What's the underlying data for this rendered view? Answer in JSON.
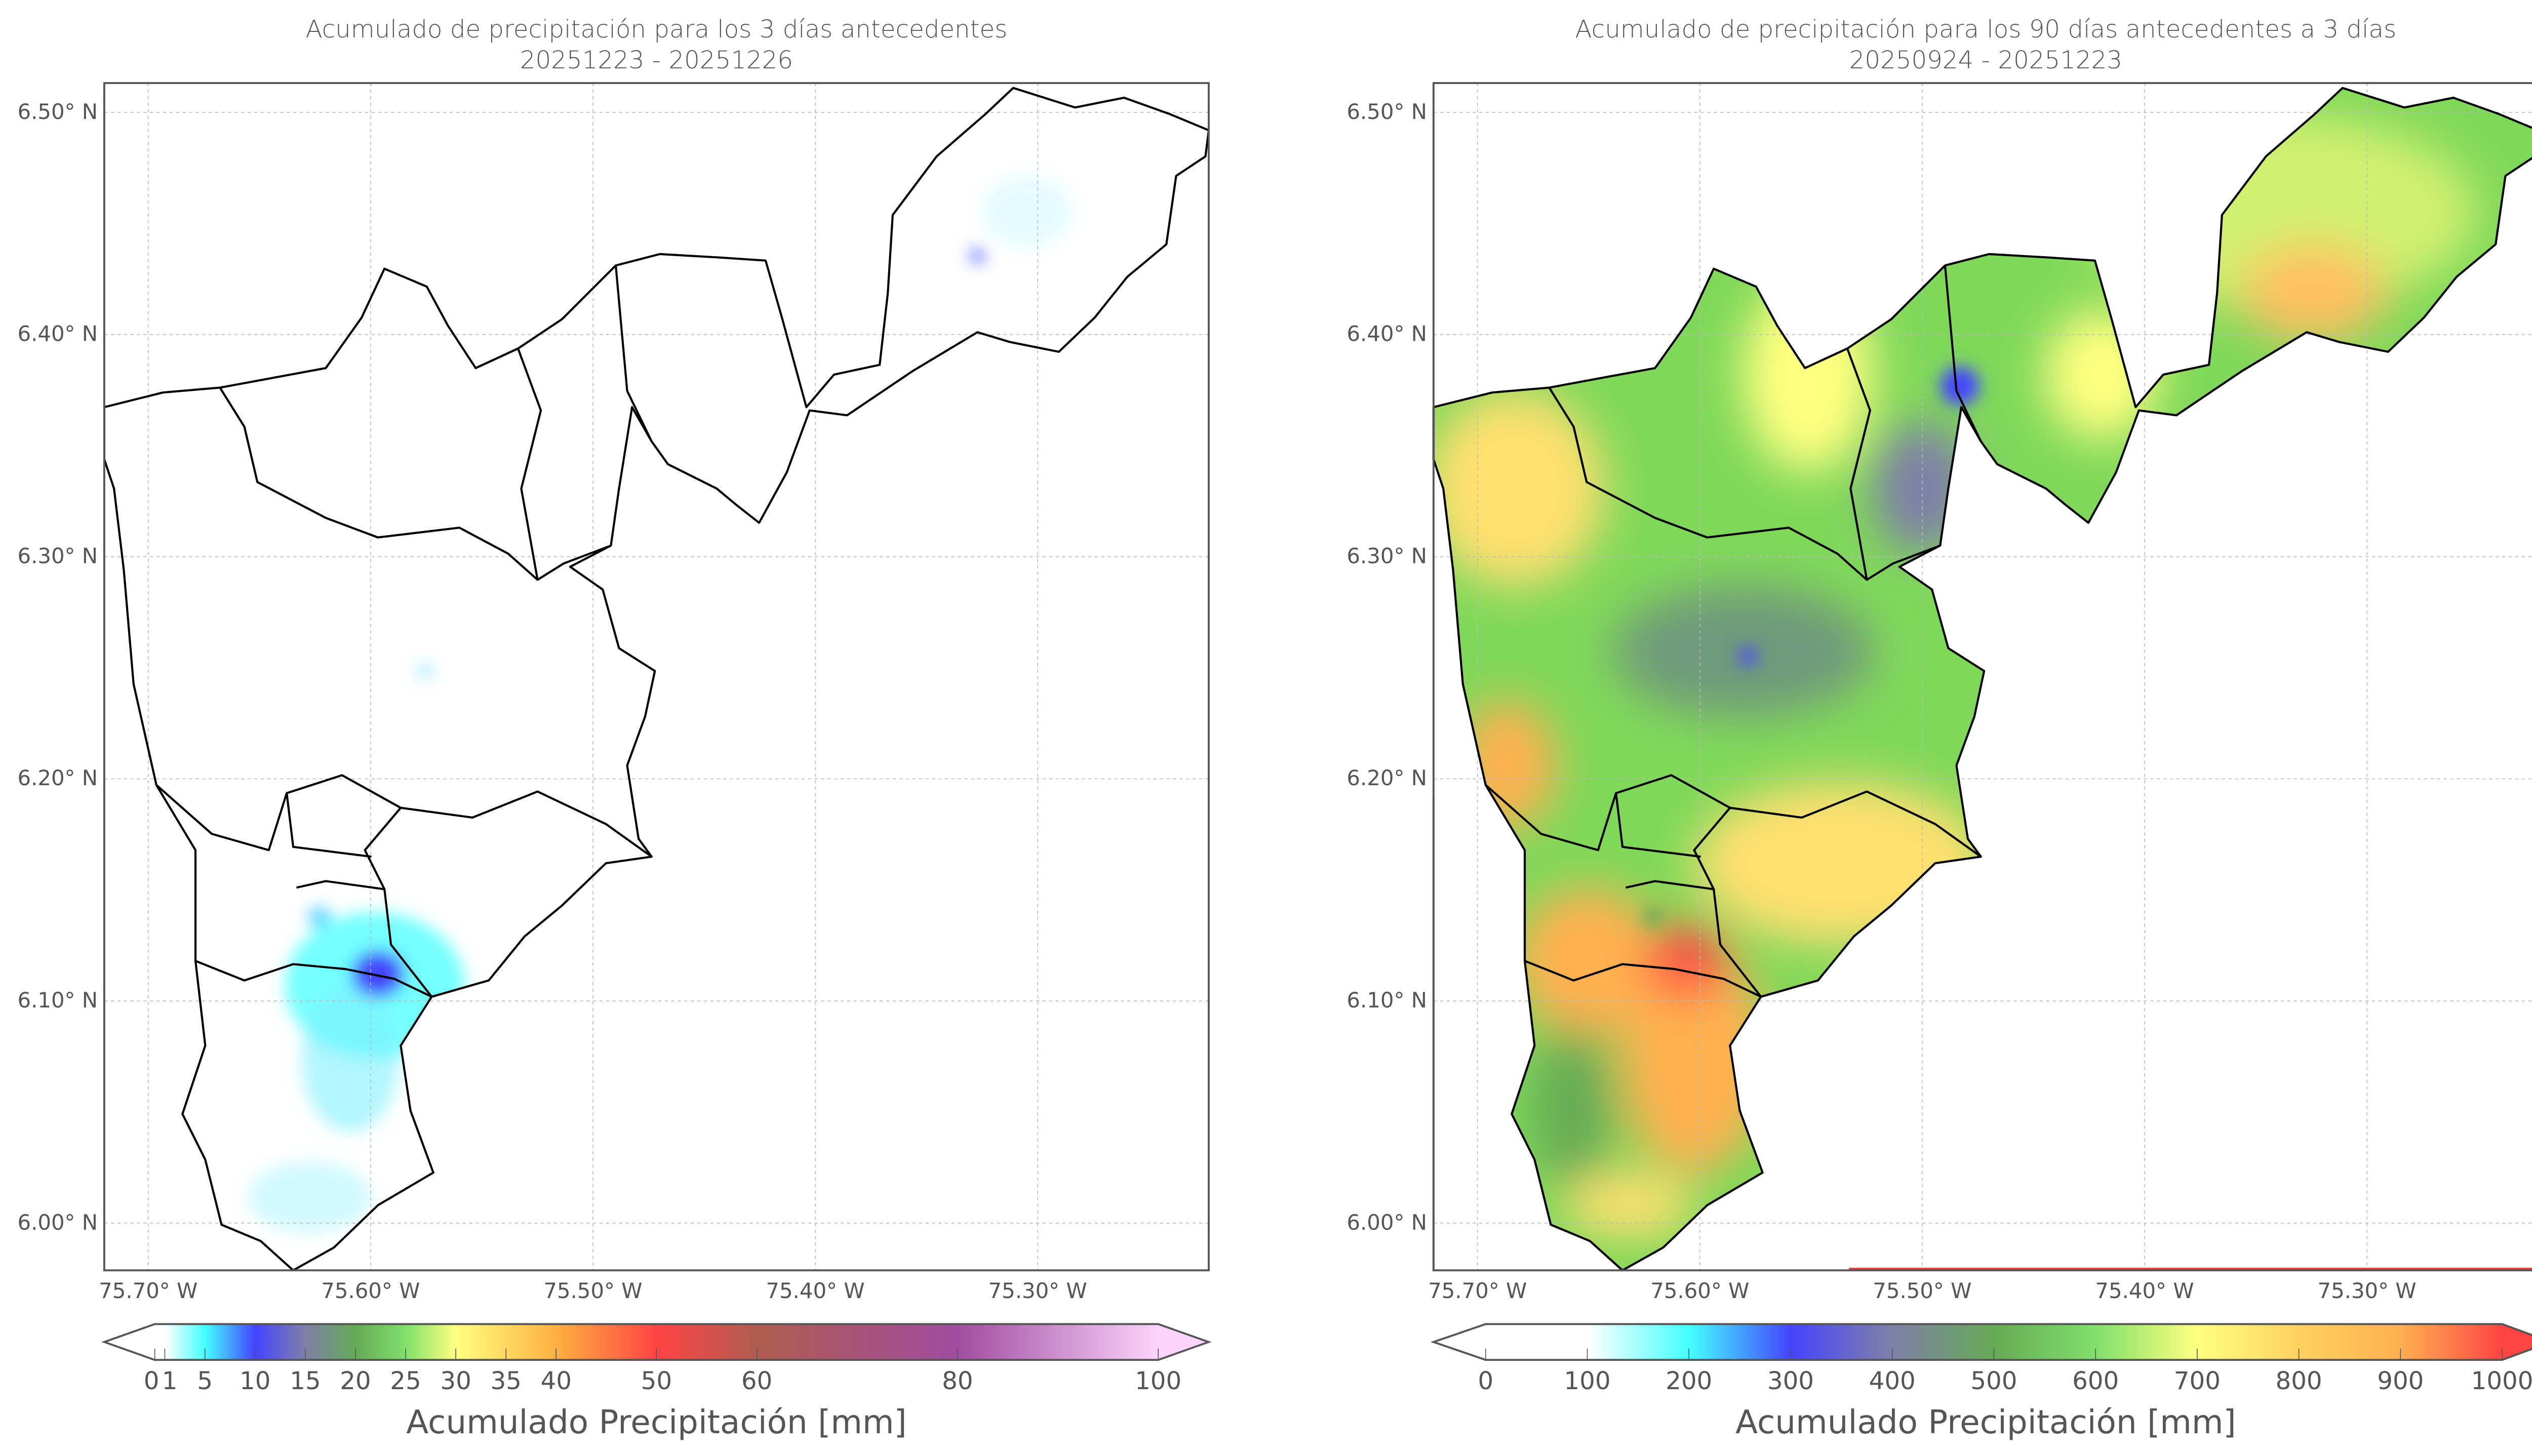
{
  "chart_data": [
    {
      "type": "heatmap",
      "title_line1": "Acumulado de precipitación para los 3 días antecedentes",
      "title_line2": "20251223 - 20251226",
      "xlim": [
        -75.72,
        -75.22
      ],
      "ylim": [
        5.98,
        6.51
      ],
      "grid": true,
      "x_ticks": [
        {
          "value": -75.7,
          "label": "75.70° W"
        },
        {
          "value": -75.6,
          "label": "75.60° W"
        },
        {
          "value": -75.5,
          "label": "75.50° W"
        },
        {
          "value": -75.4,
          "label": "75.40° W"
        },
        {
          "value": -75.3,
          "label": "75.30° W"
        }
      ],
      "y_ticks": [
        {
          "value": 6.5,
          "label": "6.50° N"
        },
        {
          "value": 6.4,
          "label": "6.40° N"
        },
        {
          "value": 6.3,
          "label": "6.30° N"
        },
        {
          "value": 6.2,
          "label": "6.20° N"
        },
        {
          "value": 6.1,
          "label": "6.10° N"
        },
        {
          "value": 6.0,
          "label": "6.00° N"
        }
      ],
      "colorbar": {
        "label": "Acumulado Precipitación [mm]",
        "range": [
          0,
          100
        ],
        "extend": "both",
        "ticks": [
          {
            "value": 0,
            "label": "0"
          },
          {
            "value": 1,
            "label": "1"
          },
          {
            "value": 5,
            "label": "5"
          },
          {
            "value": 10,
            "label": "10"
          },
          {
            "value": 15,
            "label": "15"
          },
          {
            "value": 20,
            "label": "20"
          },
          {
            "value": 25,
            "label": "25"
          },
          {
            "value": 30,
            "label": "30"
          },
          {
            "value": 35,
            "label": "35"
          },
          {
            "value": 40,
            "label": "40"
          },
          {
            "value": 50,
            "label": "50"
          },
          {
            "value": 60,
            "label": "60"
          },
          {
            "value": 80,
            "label": "80"
          },
          {
            "value": 100,
            "label": "100"
          }
        ],
        "colors": [
          [
            0,
            "#ffffff"
          ],
          [
            1,
            "#ffffff"
          ],
          [
            5,
            "#44ffff"
          ],
          [
            10,
            "#4444ff"
          ],
          [
            15,
            "#7f7fa8"
          ],
          [
            20,
            "#66aa55"
          ],
          [
            25,
            "#80e06a"
          ],
          [
            30,
            "#ffff80"
          ],
          [
            40,
            "#ffb040"
          ],
          [
            50,
            "#ff4444"
          ],
          [
            60,
            "#b05c50"
          ],
          [
            80,
            "#a04ca0"
          ],
          [
            100,
            "#fbd4fb"
          ]
        ]
      }
    },
    {
      "type": "heatmap",
      "title_line1": "Acumulado de precipitación para los 90 días antecedentes a 3 días",
      "title_line2": "20250924 - 20251223",
      "xlim": [
        -75.72,
        -75.22
      ],
      "ylim": [
        5.98,
        6.51
      ],
      "grid": true,
      "x_ticks": [
        {
          "value": -75.7,
          "label": "75.70° W"
        },
        {
          "value": -75.6,
          "label": "75.60° W"
        },
        {
          "value": -75.5,
          "label": "75.50° W"
        },
        {
          "value": -75.4,
          "label": "75.40° W"
        },
        {
          "value": -75.3,
          "label": "75.30° W"
        }
      ],
      "y_ticks": [
        {
          "value": 6.5,
          "label": "6.50° N"
        },
        {
          "value": 6.4,
          "label": "6.40° N"
        },
        {
          "value": 6.3,
          "label": "6.30° N"
        },
        {
          "value": 6.2,
          "label": "6.20° N"
        },
        {
          "value": 6.1,
          "label": "6.10° N"
        },
        {
          "value": 6.0,
          "label": "6.00° N"
        }
      ],
      "colorbar": {
        "label": "Acumulado Precipitación [mm]",
        "range": [
          0,
          1000
        ],
        "extend": "both",
        "ticks": [
          {
            "value": 0,
            "label": "0"
          },
          {
            "value": 100,
            "label": "100"
          },
          {
            "value": 200,
            "label": "200"
          },
          {
            "value": 300,
            "label": "300"
          },
          {
            "value": 400,
            "label": "400"
          },
          {
            "value": 500,
            "label": "500"
          },
          {
            "value": 600,
            "label": "600"
          },
          {
            "value": 700,
            "label": "700"
          },
          {
            "value": 800,
            "label": "800"
          },
          {
            "value": 900,
            "label": "900"
          },
          {
            "value": 1000,
            "label": "1000"
          }
        ],
        "colors": [
          [
            0,
            "#ffffff"
          ],
          [
            100,
            "#ffffff"
          ],
          [
            200,
            "#44ffff"
          ],
          [
            300,
            "#4444ff"
          ],
          [
            400,
            "#7f7fa8"
          ],
          [
            500,
            "#66aa55"
          ],
          [
            600,
            "#80e06a"
          ],
          [
            700,
            "#ffff80"
          ],
          [
            800,
            "#ffd060"
          ],
          [
            900,
            "#ffb050"
          ],
          [
            1000,
            "#ff4444"
          ]
        ]
      }
    }
  ]
}
